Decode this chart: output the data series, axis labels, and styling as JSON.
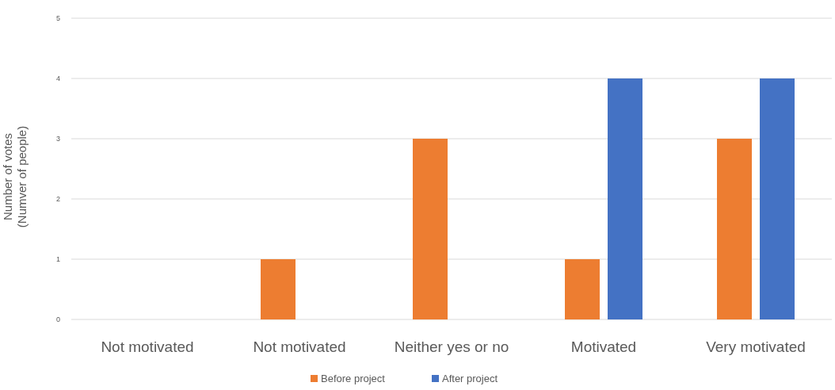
{
  "chart_data": {
    "type": "bar",
    "ylabel": "Number of votes\n(Numver of people)",
    "categories": [
      "Not motivated",
      "Not motivated",
      "Neither yes or no",
      "Motivated",
      "Very motivated"
    ],
    "series": [
      {
        "name": "Before project",
        "color": "#ed7d31",
        "values": [
          0,
          1,
          3,
          1,
          3
        ]
      },
      {
        "name": "After project",
        "color": "#4472c4",
        "values": [
          0,
          0,
          0,
          4,
          4
        ]
      }
    ],
    "ylim": [
      0,
      5
    ],
    "yticks": [
      0,
      1,
      2,
      3,
      4,
      5
    ],
    "grid": "y",
    "legend": "bottom"
  }
}
